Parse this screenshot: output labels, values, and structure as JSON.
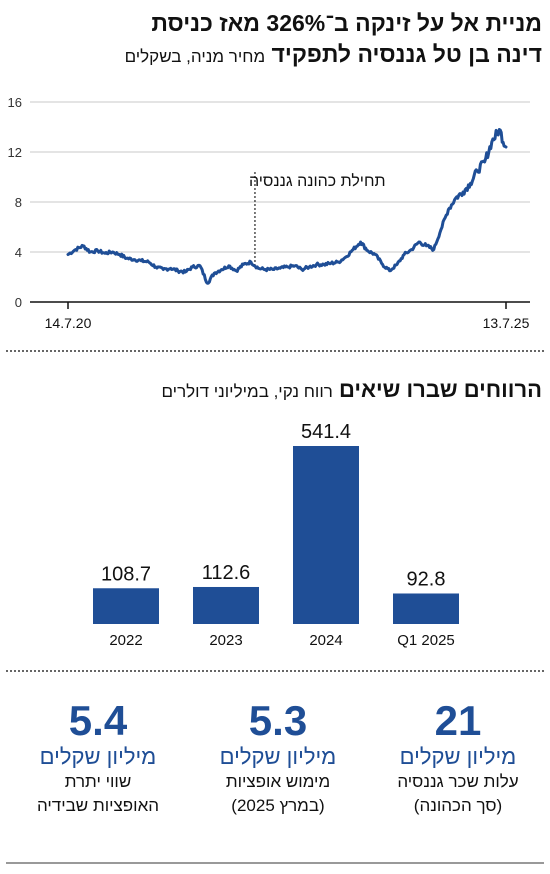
{
  "header": {
    "title_line1": "מניית אל על זינקה ב־326% מאז כניסת",
    "title_line2": "דינה בן טל גננסיה לתפקיד",
    "title_line2_sub": "מחיר מניה, בשקלים"
  },
  "chart_data": [
    {
      "type": "line",
      "title": "",
      "y_ticks": [
        "0",
        "4",
        "8",
        "12",
        "16"
      ],
      "ylim": [
        0,
        16
      ],
      "x_labels": [
        "14.7.20",
        "13.7.25"
      ],
      "annotation": "תחילת כהונה גננסיה",
      "color": "#1f4e96",
      "x": [
        "2020-07-14",
        "2020-08-15",
        "2020-09-15",
        "2020-10-15",
        "2020-11-15",
        "2020-12-15",
        "2021-01-15",
        "2021-02-15",
        "2021-03-15",
        "2021-04-15",
        "2021-05-15",
        "2021-06-15",
        "2021-07-15",
        "2021-08-15",
        "2021-09-15",
        "2021-10-15",
        "2021-11-15",
        "2021-12-15",
        "2022-01-15",
        "2022-02-15",
        "2022-03-15",
        "2022-04-15",
        "2022-05-15",
        "2022-06-15",
        "2022-07-15",
        "2022-08-15",
        "2022-09-15",
        "2022-10-15",
        "2022-11-15",
        "2022-12-15",
        "2023-01-15",
        "2023-02-15",
        "2023-03-15",
        "2023-04-15",
        "2023-05-15",
        "2023-06-15",
        "2023-07-15",
        "2023-08-15",
        "2023-09-15",
        "2023-10-15",
        "2023-11-15",
        "2023-12-15",
        "2024-01-15",
        "2024-02-15",
        "2024-03-15",
        "2024-04-15",
        "2024-05-15",
        "2024-06-15",
        "2024-07-15",
        "2024-08-15",
        "2024-09-15",
        "2024-10-15",
        "2024-11-15",
        "2024-12-15",
        "2025-01-15",
        "2025-02-15",
        "2025-03-15",
        "2025-04-15",
        "2025-05-15",
        "2025-06-15",
        "2025-07-13"
      ],
      "y": [
        3.8,
        4.2,
        4.5,
        4.0,
        4.1,
        3.9,
        4.0,
        3.8,
        3.5,
        3.4,
        3.3,
        3.2,
        2.8,
        2.6,
        2.7,
        2.5,
        2.4,
        2.8,
        2.9,
        1.5,
        2.3,
        2.6,
        2.9,
        2.5,
        3.0,
        3.2,
        2.7,
        2.6,
        2.6,
        2.7,
        2.8,
        2.9,
        2.6,
        2.8,
        3.0,
        3.0,
        3.1,
        3.2,
        3.6,
        4.2,
        4.8,
        4.1,
        3.8,
        3.0,
        2.5,
        3.0,
        3.8,
        4.2,
        4.8,
        4.5,
        4.2,
        5.8,
        7.4,
        8.3,
        8.8,
        9.5,
        10.5,
        11.2,
        12.8,
        13.8,
        12.4
      ]
    },
    {
      "type": "bar",
      "title": "הרווחים שברו שיאים",
      "subtitle": "רווח נקי, במיליוני דולרים",
      "categories": [
        "2022",
        "2023",
        "2024",
        "Q1 2025"
      ],
      "values": [
        108.7,
        112.6,
        541.4,
        92.8
      ],
      "value_labels": [
        "108.7",
        "112.6",
        "541.4",
        "92.8"
      ],
      "ylim": [
        0,
        541.4
      ],
      "color": "#1f4e96"
    }
  ],
  "stats": [
    {
      "value": "21",
      "unit": "מיליון שקלים",
      "desc1": "עלות שכר גננסיה",
      "desc2": "(סך הכהונה)"
    },
    {
      "value": "5.3",
      "unit": "מיליון שקלים",
      "desc1": "מימוש אופציות",
      "desc2": "(במרץ 2025)"
    },
    {
      "value": "5.4",
      "unit": "מיליון שקלים",
      "desc1": "שווי יתרת",
      "desc2": "האופציות שבידיה"
    }
  ]
}
